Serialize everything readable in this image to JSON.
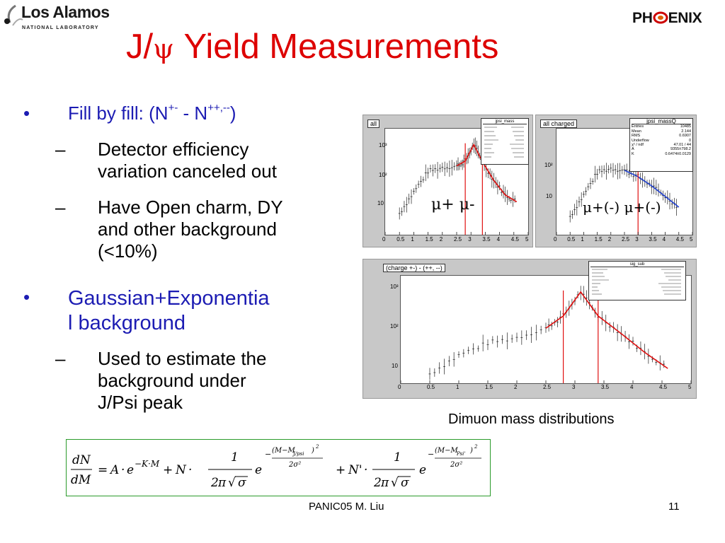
{
  "header": {
    "lanl_name": "Los Alamos",
    "lanl_sub": "NATIONAL LABORATORY",
    "phenix_pre": "PH",
    "phenix_post": "ENIX"
  },
  "title": {
    "prefix": "J/",
    "psi": "ψ",
    "rest": " Yield Measurements"
  },
  "bullets": {
    "b1_main": "Fill by fill: (N",
    "b1_sup1": "+-",
    "b1_mid": " - N",
    "b1_sup2": "++,--",
    "b1_end": ")",
    "b1_sub1_l1": "Detector efficiency",
    "b1_sub1_l2": "variation canceled out",
    "b1_sub2_l1": "Have Open charm, DY",
    "b1_sub2_l2": "and other background",
    "b1_sub2_l3": "(<10%)",
    "b2_l1": "Gaussian+Exponentia",
    "b2_l2": "l background",
    "b2_sub1_l1": "Used to estimate the",
    "b2_sub1_l2": "background under",
    "b2_sub1_l3": "J/Psi peak",
    "dot": "•",
    "dash": "–"
  },
  "plots": {
    "p1": {
      "tag": "all",
      "stat_title": "jpsi_mass",
      "label": "μ+ μ-"
    },
    "p2": {
      "tag": "all charged",
      "stat_title": "jpsi_massQ",
      "label": "μ+(-) μ+(-)",
      "stats": [
        [
          "Entries",
          "10485"
        ],
        [
          "Mean",
          "2.144"
        ],
        [
          "RMS",
          "0.6907"
        ],
        [
          "Underflow",
          "0"
        ],
        [
          "χ² / ndf",
          "47.01 / 44"
        ],
        [
          "A",
          "9355±798.2"
        ],
        [
          "K",
          "0.6474±0.0129"
        ]
      ]
    },
    "p3": {
      "tag": "(charge +-) - (++, --)",
      "stat_title": "sig_sub"
    },
    "xticks": [
      "0",
      "0.5",
      "1",
      "1.5",
      "2",
      "2.5",
      "3",
      "3.5",
      "4",
      "4.5",
      "5"
    ],
    "yticks_small": [
      "10³",
      "10²",
      "10"
    ],
    "color_fit": "#e01010",
    "color_fit_blue": "#1f3fd0"
  },
  "chart_data": [
    {
      "type": "line",
      "title": "",
      "xlabel": "",
      "ylabel": "",
      "xlim": [
        0,
        5
      ],
      "log_y": true,
      "series": [
        {
          "values": [
            [
              0.5,
              5
            ],
            [
              1.0,
              25
            ],
            [
              1.5,
              120
            ],
            [
              2.0,
              160
            ],
            [
              2.5,
              180
            ],
            [
              2.8,
              260
            ],
            [
              3.1,
              900
            ],
            [
              3.4,
              250
            ],
            [
              3.8,
              60
            ],
            [
              4.2,
              20
            ],
            [
              4.6,
              12
            ]
          ]
        }
      ]
    },
    {
      "type": "line",
      "title": "",
      "xlabel": "",
      "ylabel": "",
      "xlim": [
        0,
        5
      ],
      "log_y": true,
      "series": [
        {
          "values": [
            [
              0.5,
              4
            ],
            [
              1.0,
              20
            ],
            [
              1.5,
              110
            ],
            [
              2.0,
              150
            ],
            [
              2.5,
              130
            ],
            [
              3.0,
              80
            ],
            [
              3.5,
              40
            ],
            [
              4.0,
              18
            ],
            [
              4.5,
              8
            ]
          ]
        }
      ]
    },
    {
      "type": "line",
      "title": "",
      "xlabel": "",
      "ylabel": "",
      "xlim": [
        0,
        5
      ],
      "log_y": true,
      "series": [
        {
          "values": [
            [
              0.5,
              2
            ],
            [
              1.0,
              8
            ],
            [
              1.5,
              20
            ],
            [
              2.0,
              30
            ],
            [
              2.5,
              60
            ],
            [
              2.8,
              150
            ],
            [
              3.1,
              900
            ],
            [
              3.4,
              150
            ],
            [
              3.8,
              40
            ],
            [
              4.2,
              10
            ],
            [
              4.6,
              3
            ]
          ]
        }
      ]
    }
  ],
  "caption": "Dimuon mass distributions",
  "footer": "PANIC05  M. Liu",
  "page_number": "11"
}
